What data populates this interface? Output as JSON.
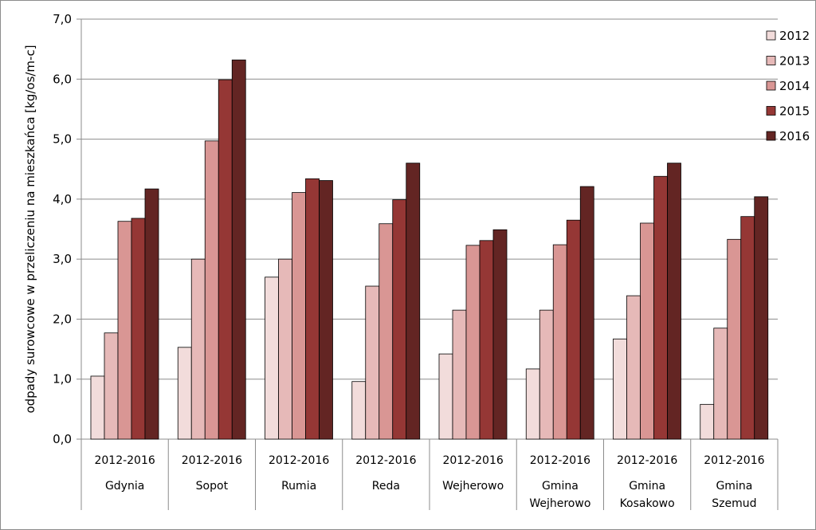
{
  "chart_data": {
    "type": "bar",
    "ylabel": "odpady surowcowe w przeliczeniu na mieszkańca [kg/os/m-c]",
    "xlabel": "",
    "ylim": [
      0,
      7
    ],
    "yticks": [
      "0,0",
      "1,0",
      "2,0",
      "3,0",
      "4,0",
      "5,0",
      "6,0",
      "7,0"
    ],
    "grid": true,
    "legend_position": "right",
    "categories": [
      {
        "period": "2012-2016",
        "name_lines": [
          "Gdynia"
        ]
      },
      {
        "period": "2012-2016",
        "name_lines": [
          "Sopot"
        ]
      },
      {
        "period": "2012-2016",
        "name_lines": [
          "Rumia"
        ]
      },
      {
        "period": "2012-2016",
        "name_lines": [
          "Reda"
        ]
      },
      {
        "period": "2012-2016",
        "name_lines": [
          "Wejherowo"
        ]
      },
      {
        "period": "2012-2016",
        "name_lines": [
          "Gmina",
          "Wejherowo"
        ]
      },
      {
        "period": "2012-2016",
        "name_lines": [
          "Gmina",
          "Kosakowo"
        ]
      },
      {
        "period": "2012-2016",
        "name_lines": [
          "Gmina",
          "Szemud"
        ]
      }
    ],
    "series": [
      {
        "name": "2012",
        "color": "#f2dcdb",
        "values": [
          1.05,
          1.53,
          2.7,
          0.96,
          1.42,
          1.17,
          1.67,
          0.58
        ]
      },
      {
        "name": "2013",
        "color": "#e6b9b8",
        "values": [
          1.77,
          3.0,
          3.0,
          2.55,
          2.15,
          2.15,
          2.39,
          1.85
        ]
      },
      {
        "name": "2014",
        "color": "#d99694",
        "values": [
          3.63,
          4.97,
          4.11,
          3.59,
          3.23,
          3.24,
          3.6,
          3.33
        ]
      },
      {
        "name": "2015",
        "color": "#953735",
        "values": [
          3.68,
          5.99,
          4.34,
          3.99,
          3.31,
          3.65,
          4.38,
          3.71
        ]
      },
      {
        "name": "2016",
        "color": "#632523",
        "values": [
          4.17,
          6.32,
          4.31,
          4.6,
          3.49,
          4.21,
          4.6,
          4.04
        ]
      }
    ]
  }
}
